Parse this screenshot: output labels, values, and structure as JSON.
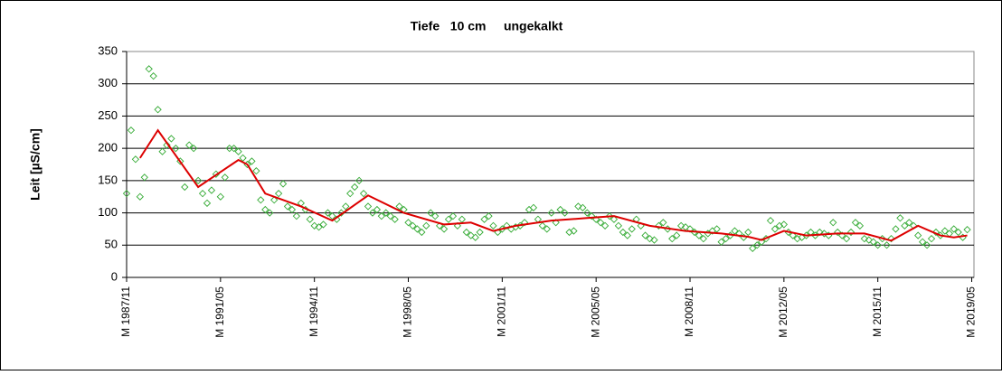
{
  "chart_data": {
    "type": "scatter",
    "title": "Tiefe   10 cm     ungekalkt",
    "y_label": "Leit [µS/cm]",
    "ylim": [
      0,
      350
    ],
    "yticks": [
      0,
      50,
      100,
      150,
      200,
      250,
      300,
      350
    ],
    "grid": true,
    "xlim": [
      "1987/11",
      "2019/06"
    ],
    "xticks": [
      {
        "value": "1987/11",
        "label": "M 1987/11"
      },
      {
        "value": "1991/05",
        "label": "M 1991/05"
      },
      {
        "value": "1994/11",
        "label": "M 1994/11"
      },
      {
        "value": "1998/05",
        "label": "M 1998/05"
      },
      {
        "value": "2001/11",
        "label": "M 2001/11"
      },
      {
        "value": "2005/05",
        "label": "M 2005/05"
      },
      {
        "value": "2008/11",
        "label": "M 2008/11"
      },
      {
        "value": "2012/05",
        "label": "M 2012/05"
      },
      {
        "value": "2015/11",
        "label": "M 2015/11"
      },
      {
        "value": "2019/05",
        "label": "M 2019/05"
      }
    ],
    "series": [
      {
        "type": "scatter",
        "marker": "diamond",
        "color": "#33aa33",
        "x": [
          "1987/11",
          "1988/01",
          "1988/03",
          "1988/05",
          "1988/07",
          "1988/09",
          "1988/11",
          "1989/01",
          "1989/03",
          "1989/05",
          "1989/07",
          "1989/09",
          "1989/11",
          "1990/01",
          "1990/03",
          "1990/05",
          "1990/07",
          "1990/09",
          "1990/11",
          "1991/01",
          "1991/03",
          "1991/05",
          "1991/07",
          "1991/09",
          "1991/11",
          "1992/01",
          "1992/03",
          "1992/05",
          "1992/07",
          "1992/09",
          "1992/11",
          "1993/01",
          "1993/03",
          "1993/05",
          "1993/07",
          "1993/09",
          "1993/11",
          "1994/01",
          "1994/03",
          "1994/05",
          "1994/07",
          "1994/09",
          "1994/11",
          "1995/01",
          "1995/03",
          "1995/05",
          "1995/07",
          "1995/09",
          "1995/11",
          "1996/01",
          "1996/03",
          "1996/05",
          "1996/07",
          "1996/09",
          "1996/11",
          "1997/01",
          "1997/03",
          "1997/05",
          "1997/07",
          "1997/09",
          "1997/11",
          "1998/01",
          "1998/03",
          "1998/05",
          "1998/07",
          "1998/09",
          "1998/11",
          "1999/01",
          "1999/03",
          "1999/05",
          "1999/07",
          "1999/09",
          "1999/11",
          "2000/01",
          "2000/03",
          "2000/05",
          "2000/07",
          "2000/09",
          "2000/11",
          "2001/01",
          "2001/03",
          "2001/05",
          "2001/07",
          "2001/09",
          "2001/11",
          "2002/01",
          "2002/03",
          "2002/05",
          "2002/07",
          "2002/09",
          "2002/11",
          "2003/01",
          "2003/03",
          "2003/05",
          "2003/07",
          "2003/09",
          "2003/11",
          "2004/01",
          "2004/03",
          "2004/05",
          "2004/07",
          "2004/09",
          "2004/11",
          "2005/01",
          "2005/03",
          "2005/05",
          "2005/07",
          "2005/09",
          "2005/11",
          "2006/01",
          "2006/03",
          "2006/05",
          "2006/07",
          "2006/09",
          "2006/11",
          "2007/01",
          "2007/03",
          "2007/05",
          "2007/07",
          "2007/09",
          "2007/11",
          "2008/01",
          "2008/03",
          "2008/05",
          "2008/07",
          "2008/09",
          "2008/11",
          "2009/01",
          "2009/03",
          "2009/05",
          "2009/07",
          "2009/09",
          "2009/11",
          "2010/01",
          "2010/03",
          "2010/05",
          "2010/07",
          "2010/09",
          "2010/11",
          "2011/01",
          "2011/03",
          "2011/05",
          "2011/07",
          "2011/09",
          "2011/11",
          "2012/01",
          "2012/03",
          "2012/05",
          "2012/07",
          "2012/09",
          "2012/11",
          "2013/01",
          "2013/03",
          "2013/05",
          "2013/07",
          "2013/09",
          "2013/11",
          "2014/01",
          "2014/03",
          "2014/05",
          "2014/07",
          "2014/09",
          "2014/11",
          "2015/01",
          "2015/03",
          "2015/05",
          "2015/07",
          "2015/09",
          "2015/11",
          "2016/01",
          "2016/03",
          "2016/05",
          "2016/07",
          "2016/09",
          "2016/11",
          "2017/01",
          "2017/03",
          "2017/05",
          "2017/07",
          "2017/09",
          "2017/11",
          "2018/01",
          "2018/03",
          "2018/05",
          "2018/07",
          "2018/09",
          "2018/11",
          "2019/01",
          "2019/03"
        ],
        "values": [
          130,
          228,
          183,
          125,
          155,
          323,
          312,
          260,
          195,
          205,
          215,
          200,
          180,
          140,
          205,
          200,
          150,
          130,
          115,
          135,
          160,
          125,
          155,
          200,
          200,
          195,
          185,
          175,
          180,
          165,
          120,
          105,
          100,
          120,
          130,
          145,
          110,
          105,
          95,
          115,
          105,
          90,
          80,
          78,
          82,
          100,
          95,
          90,
          100,
          110,
          130,
          140,
          150,
          130,
          110,
          100,
          105,
          95,
          100,
          95,
          90,
          110,
          105,
          85,
          80,
          75,
          70,
          80,
          100,
          95,
          80,
          75,
          90,
          95,
          80,
          90,
          70,
          65,
          62,
          70,
          90,
          95,
          80,
          70,
          75,
          80,
          75,
          78,
          80,
          85,
          105,
          108,
          90,
          80,
          75,
          100,
          85,
          105,
          100,
          70,
          72,
          110,
          108,
          100,
          95,
          90,
          85,
          80,
          95,
          90,
          80,
          70,
          65,
          75,
          90,
          80,
          65,
          60,
          58,
          80,
          85,
          75,
          60,
          65,
          80,
          78,
          75,
          70,
          65,
          60,
          68,
          72,
          75,
          55,
          60,
          65,
          72,
          68,
          62,
          70,
          45,
          50,
          55,
          60,
          88,
          75,
          80,
          82,
          70,
          65,
          60,
          62,
          65,
          70,
          65,
          70,
          68,
          65,
          85,
          70,
          65,
          60,
          70,
          85,
          80,
          60,
          58,
          55,
          50,
          60,
          50,
          60,
          75,
          92,
          80,
          85,
          80,
          65,
          55,
          50,
          60,
          70,
          65,
          72,
          68,
          75,
          70,
          62,
          74
        ]
      },
      {
        "type": "line",
        "color": "#dd0000",
        "x": [
          "1988/05",
          "1989/01",
          "1990/07",
          "1992/01",
          "1992/05",
          "1993/01",
          "1993/09",
          "1994/05",
          "1995/07",
          "1996/11",
          "1998/03",
          "1999/09",
          "2000/09",
          "2001/07",
          "2002/05",
          "2003/09",
          "2005/01",
          "2006/01",
          "2007/05",
          "2008/09",
          "2010/01",
          "2011/01",
          "2011/07",
          "2012/05",
          "2013/03",
          "2014/05",
          "2015/05",
          "2016/05",
          "2017/05",
          "2018/03",
          "2018/09",
          "2019/03"
        ],
        "values": [
          185,
          228,
          140,
          182,
          175,
          130,
          120,
          110,
          88,
          127,
          100,
          82,
          85,
          72,
          80,
          88,
          92,
          95,
          80,
          72,
          68,
          63,
          58,
          72,
          65,
          68,
          68,
          57,
          80,
          65,
          62,
          65
        ]
      }
    ]
  }
}
